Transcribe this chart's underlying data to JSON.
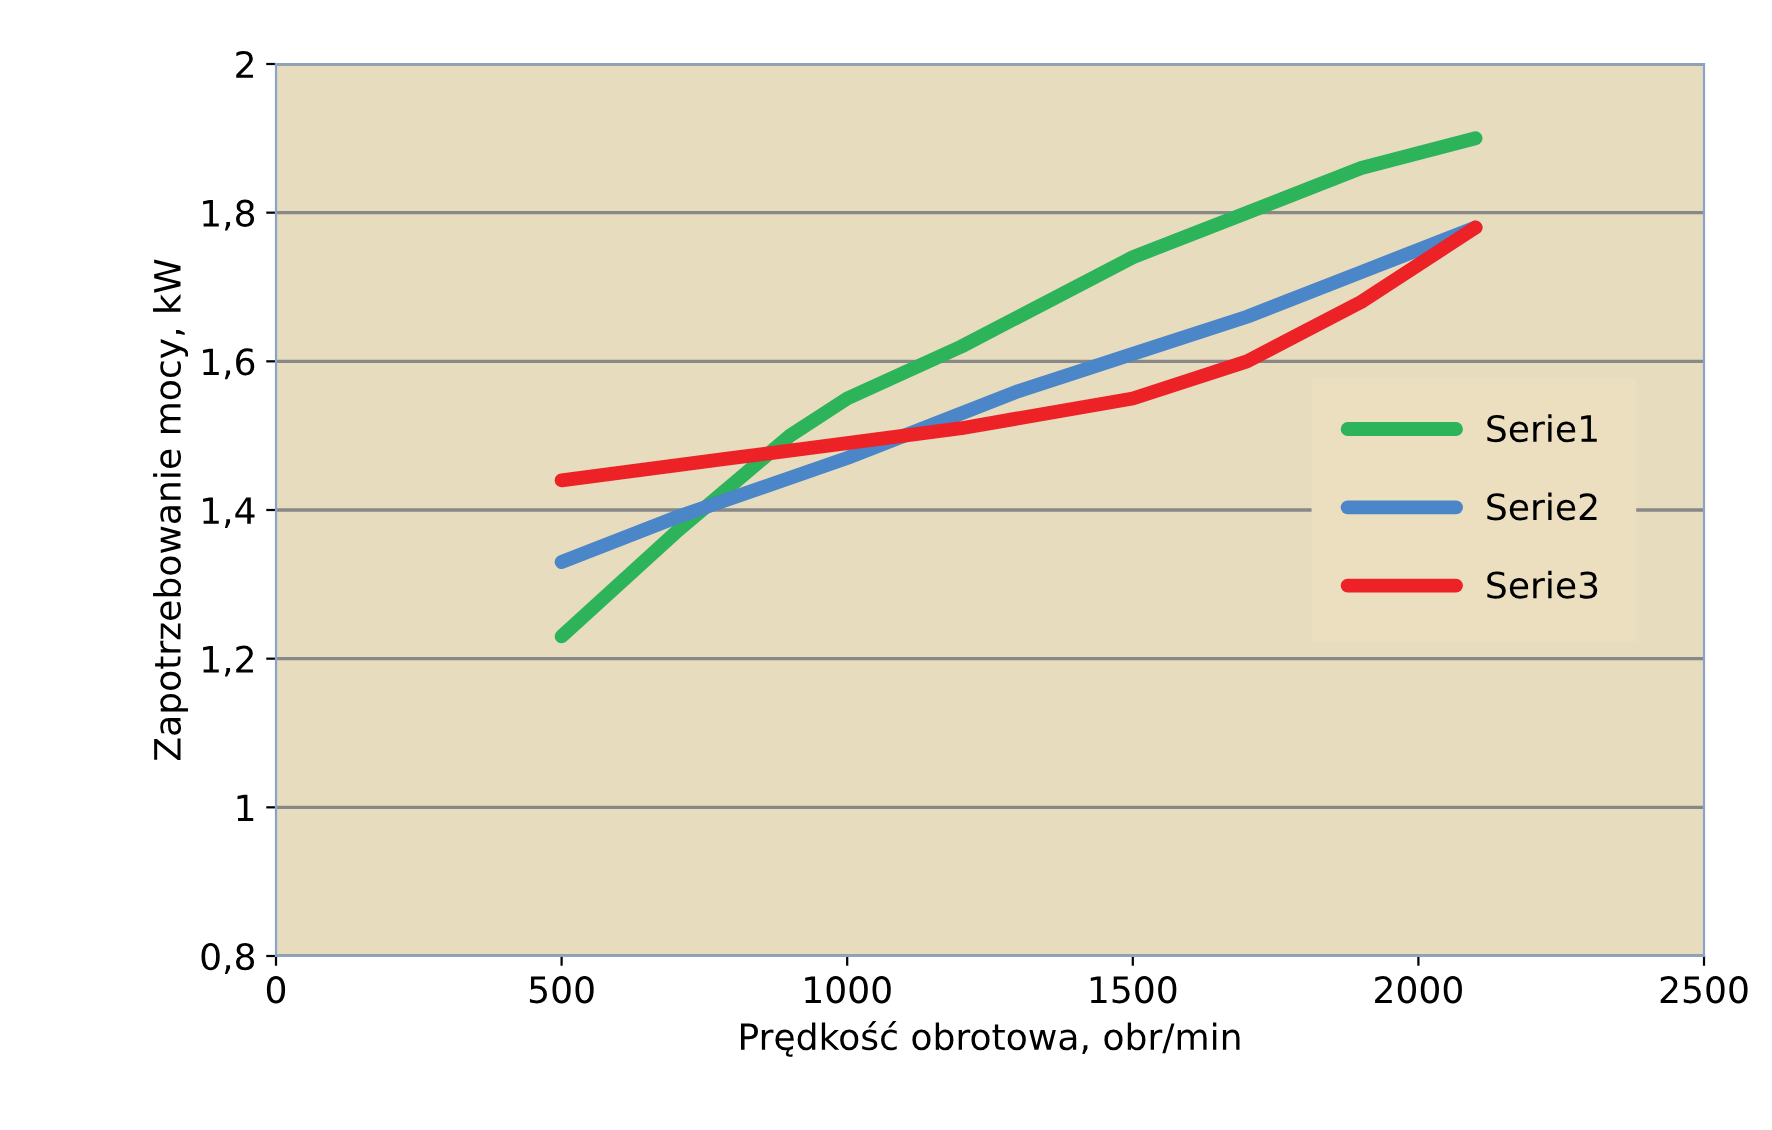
{
  "chart_data": {
    "type": "line",
    "xlabel": "Prędkość obrotowa, obr/min",
    "ylabel": "Zapotrzebowanie mocy, kW",
    "xlim": [
      0,
      2500
    ],
    "xticks": [
      0,
      500,
      1000,
      1500,
      2000,
      2500
    ],
    "ylim": [
      0.8,
      2
    ],
    "yticks": [
      {
        "value": 0.8,
        "label": "0,8"
      },
      {
        "value": 1,
        "label": "1"
      },
      {
        "value": 1.2,
        "label": "1,2"
      },
      {
        "value": 1.4,
        "label": "1,4"
      },
      {
        "value": 1.6,
        "label": "1,6"
      },
      {
        "value": 1.8,
        "label": "1,8"
      },
      {
        "value": 2,
        "label": "2"
      }
    ],
    "grid": "y",
    "legend": "right",
    "marker": "none",
    "line_style": "solid",
    "series": [
      {
        "name": "Serie1",
        "color": "#2db35a",
        "x": [
          500,
          700,
          900,
          1000,
          1200,
          1500,
          1700,
          1900,
          2100
        ],
        "values": [
          1.23,
          1.37,
          1.5,
          1.55,
          1.62,
          1.74,
          1.8,
          1.86,
          1.9
        ]
      },
      {
        "name": "Serie2",
        "color": "#4a86c8",
        "x": [
          500,
          700,
          1000,
          1300,
          1500,
          1700,
          1900,
          2100
        ],
        "values": [
          1.33,
          1.39,
          1.47,
          1.56,
          1.61,
          1.66,
          1.72,
          1.78
        ]
      },
      {
        "name": "Serie3",
        "color": "#ec2227",
        "x": [
          500,
          800,
          1000,
          1200,
          1500,
          1700,
          1900,
          2100
        ],
        "values": [
          1.44,
          1.47,
          1.49,
          1.51,
          1.55,
          1.6,
          1.68,
          1.78
        ]
      }
    ]
  }
}
